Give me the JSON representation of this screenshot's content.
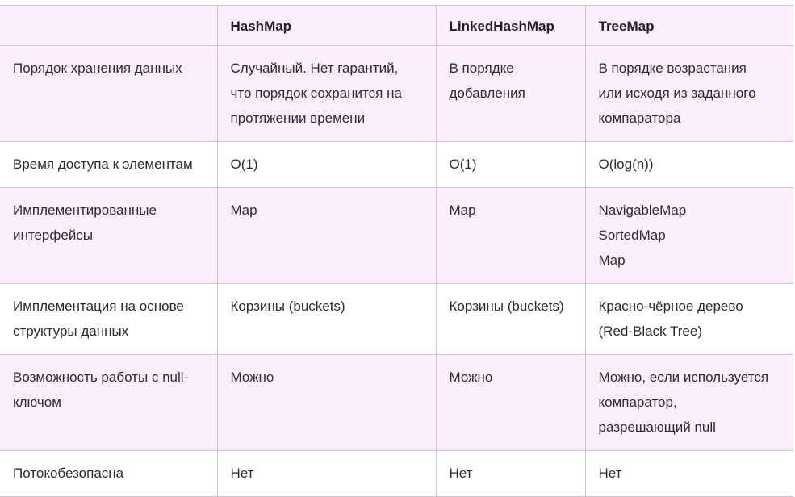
{
  "table": {
    "headers": [
      "",
      "HashMap",
      "LinkedHashMap",
      "TreeMap"
    ],
    "rows": [
      {
        "label": "Порядок хранения данных",
        "cells": [
          [
            "Случайный. Нет гарантий,",
            "что порядок сохранится на",
            "протяжении времени"
          ],
          [
            "В порядке",
            "добавления"
          ],
          [
            "В порядке возрастания",
            "или исходя из заданного",
            "компаратора"
          ]
        ]
      },
      {
        "label": "Время доступа к элементам",
        "cells": [
          [
            "O(1)"
          ],
          [
            "O(1)"
          ],
          [
            "O(log(n))"
          ]
        ]
      },
      {
        "label": "Имплементированные интерфейсы",
        "label_lines": [
          "Имплементированные",
          "интерфейсы"
        ],
        "cells": [
          [
            "Map"
          ],
          [
            "Map"
          ],
          [
            "NavigableMap",
            "SortedMap",
            "Map"
          ]
        ]
      },
      {
        "label": "Имплементация на основе структуры данных",
        "label_lines": [
          "Имплементация на основе",
          "структуры данных"
        ],
        "cells": [
          [
            "Корзины (buckets)"
          ],
          [
            "Корзины (buckets)"
          ],
          [
            "Красно-чёрное дерево",
            "(Red-Black Tree)"
          ]
        ]
      },
      {
        "label": "Возможность работы с null-ключом",
        "label_lines": [
          "Возможность работы с null-",
          "ключом"
        ],
        "cells": [
          [
            "Можно"
          ],
          [
            "Можно"
          ],
          [
            "Можно, если используется",
            "компаратор,",
            "разрешающий null"
          ]
        ]
      },
      {
        "label": "Потокобезопасна",
        "cells": [
          [
            "Нет"
          ],
          [
            "Нет"
          ],
          [
            "Нет"
          ]
        ]
      }
    ]
  }
}
